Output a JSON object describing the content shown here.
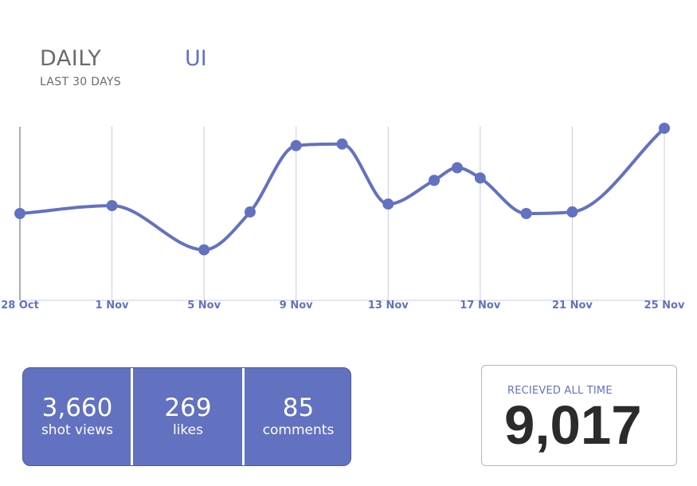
{
  "header": {
    "title": "DAILY",
    "tab": "UI",
    "subtitle": "LAST 30 DAYS"
  },
  "colors": {
    "accent": "#6272c0",
    "gridline": "#c9cbe0",
    "text_gray": "#6b6b6b",
    "total_text": "#2b2b2b"
  },
  "chart_data": {
    "type": "line",
    "title": "DAILY",
    "subtitle": "LAST 30 DAYS",
    "xlabel": "",
    "ylabel": "",
    "grid": "vertical",
    "smooth": true,
    "x_ticks": [
      0,
      4,
      8,
      12,
      16,
      20,
      24,
      28
    ],
    "tick_labels": [
      "28 Oct",
      "1 Nov",
      "5 Nov",
      "9 Nov",
      "13 Nov",
      "17 Nov",
      "21 Nov",
      "25 Nov"
    ],
    "xlim": [
      0,
      28
    ],
    "ylim": [
      0,
      220
    ],
    "series": [
      {
        "name": "shot views",
        "x": [
          0,
          4,
          8,
          10,
          12,
          14,
          16,
          18,
          19,
          20,
          22,
          24,
          28
        ],
        "values": [
          110,
          120,
          64,
          112,
          196,
          198,
          122,
          152,
          168,
          155,
          110,
          112,
          218
        ]
      }
    ]
  },
  "stats": [
    {
      "value": "3,660",
      "label": "shot views"
    },
    {
      "value": "269",
      "label": "likes"
    },
    {
      "value": "85",
      "label": "comments"
    }
  ],
  "total": {
    "label": "RECIEVED ALL TIME",
    "value": "9,017"
  }
}
